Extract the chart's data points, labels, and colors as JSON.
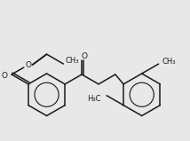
{
  "bg_color": "#e8e8e8",
  "line_color": "#1a1a1a",
  "text_color": "#1a1a1a",
  "line_width": 1.1,
  "font_size": 6.0,
  "fig_width": 2.14,
  "fig_height": 1.59,
  "dpi": 100,
  "xlim": [
    0,
    214
  ],
  "ylim": [
    159,
    0
  ]
}
